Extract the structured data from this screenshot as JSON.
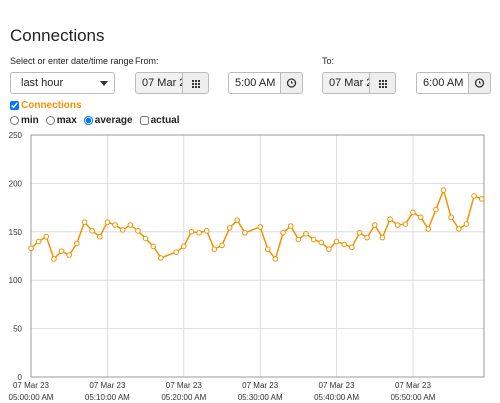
{
  "header": {
    "title": "Connections"
  },
  "range": {
    "prompt": "Select or enter date/time range",
    "preset": "last hour",
    "from_label": "From:",
    "from_date": "07 Mar 2",
    "from_time": "5:00 AM",
    "to_label": "To:",
    "to_date": "07 Mar 2",
    "to_time": "6:00 AM"
  },
  "options": {
    "modes": [
      "min",
      "max",
      "average"
    ],
    "selected_mode": "average",
    "actual": "actual"
  },
  "chart_data": {
    "type": "line",
    "x": [
      0,
      1,
      2,
      3,
      4,
      5,
      6,
      7,
      8,
      9,
      10,
      11,
      12,
      13,
      14,
      15,
      16,
      17,
      19,
      20,
      21,
      22,
      23,
      24,
      25,
      26,
      27,
      28,
      30,
      31,
      32,
      33,
      34,
      35,
      36,
      37,
      38,
      39,
      40,
      41,
      42,
      43,
      44,
      45,
      46,
      47,
      48,
      49,
      50,
      51,
      52,
      53,
      54,
      55,
      56,
      57,
      58,
      59
    ],
    "series": [
      {
        "name": "Connections",
        "color": "#f39200",
        "values": [
          133,
          140,
          145,
          122,
          130,
          126,
          138,
          160,
          151,
          145,
          160,
          157,
          152,
          157,
          151,
          143,
          135,
          123,
          129,
          135,
          150,
          149,
          151,
          132,
          136,
          154,
          162,
          149,
          155,
          132,
          122,
          149,
          156,
          142,
          148,
          142,
          139,
          132,
          140,
          137,
          134,
          149,
          144,
          157,
          144,
          163,
          157,
          158,
          170,
          165,
          153,
          173,
          193,
          165,
          153,
          158,
          187,
          184
        ]
      }
    ],
    "xlim": [
      0,
      59.3
    ],
    "xticks": [
      {
        "value": 0,
        "label": [
          "07 Mar 23",
          "05:00:00 AM"
        ]
      },
      {
        "value": 10,
        "label": [
          "07 Mar 23",
          "05:10:00 AM"
        ]
      },
      {
        "value": 20,
        "label": [
          "07 Mar 23",
          "05:20:00 AM"
        ]
      },
      {
        "value": 30,
        "label": [
          "07 Mar 23",
          "05:30:00 AM"
        ]
      },
      {
        "value": 40,
        "label": [
          "07 Mar 23",
          "05:40:00 AM"
        ]
      },
      {
        "value": 50,
        "label": [
          "07 Mar 23",
          "05:50:00 AM"
        ]
      }
    ],
    "ylim": [
      0,
      250
    ],
    "yticks": [
      0,
      50,
      100,
      150,
      200,
      250
    ],
    "grid": true
  }
}
